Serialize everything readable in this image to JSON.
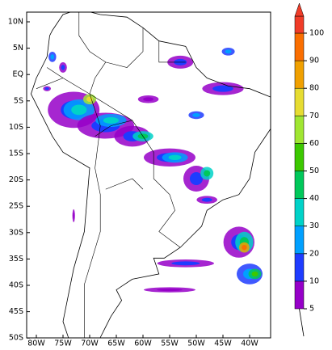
{
  "map": {
    "lat_labels": [
      "10N",
      "5N",
      "EQ",
      "5S",
      "10S",
      "15S",
      "20S",
      "25S",
      "30S",
      "35S",
      "40S",
      "45S",
      "50S"
    ],
    "lon_labels": [
      "80W",
      "75W",
      "70W",
      "65W",
      "60W",
      "55W",
      "50W",
      "45W",
      "40W"
    ],
    "colorbar": {
      "levels": [
        5,
        10,
        20,
        30,
        40,
        50,
        60,
        70,
        80,
        90,
        100
      ],
      "colors": [
        "#9600c8",
        "#1e3cff",
        "#00a0ff",
        "#00d2c8",
        "#00c85a",
        "#3cc800",
        "#a0e632",
        "#e6dc32",
        "#f0a000",
        "#fa6e00",
        "#f03c28"
      ]
    }
  }
}
